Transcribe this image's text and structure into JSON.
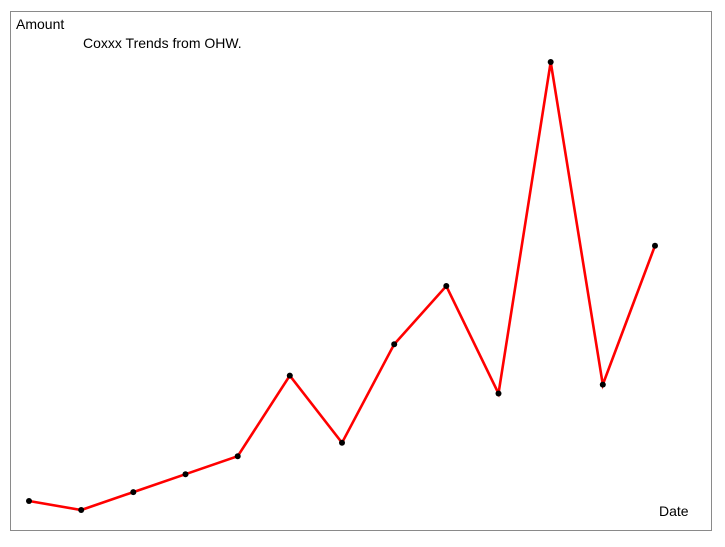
{
  "chart_data": {
    "type": "line",
    "title": "Coxxx Trends from OHW.",
    "xlabel": "Date",
    "ylabel": "Amount",
    "grid": false,
    "legend": "none",
    "x": [
      1,
      2,
      3,
      4,
      5,
      6,
      7,
      8,
      9,
      10,
      11,
      12,
      13
    ],
    "series": [
      {
        "values": [
          1,
          0,
          2,
          4,
          6,
          15,
          7.5,
          18.5,
          25,
          13,
          50,
          14,
          29.5
        ],
        "color": "#ff0000",
        "marker_color": "#000000"
      }
    ],
    "ylim": [
      0,
      50
    ]
  }
}
